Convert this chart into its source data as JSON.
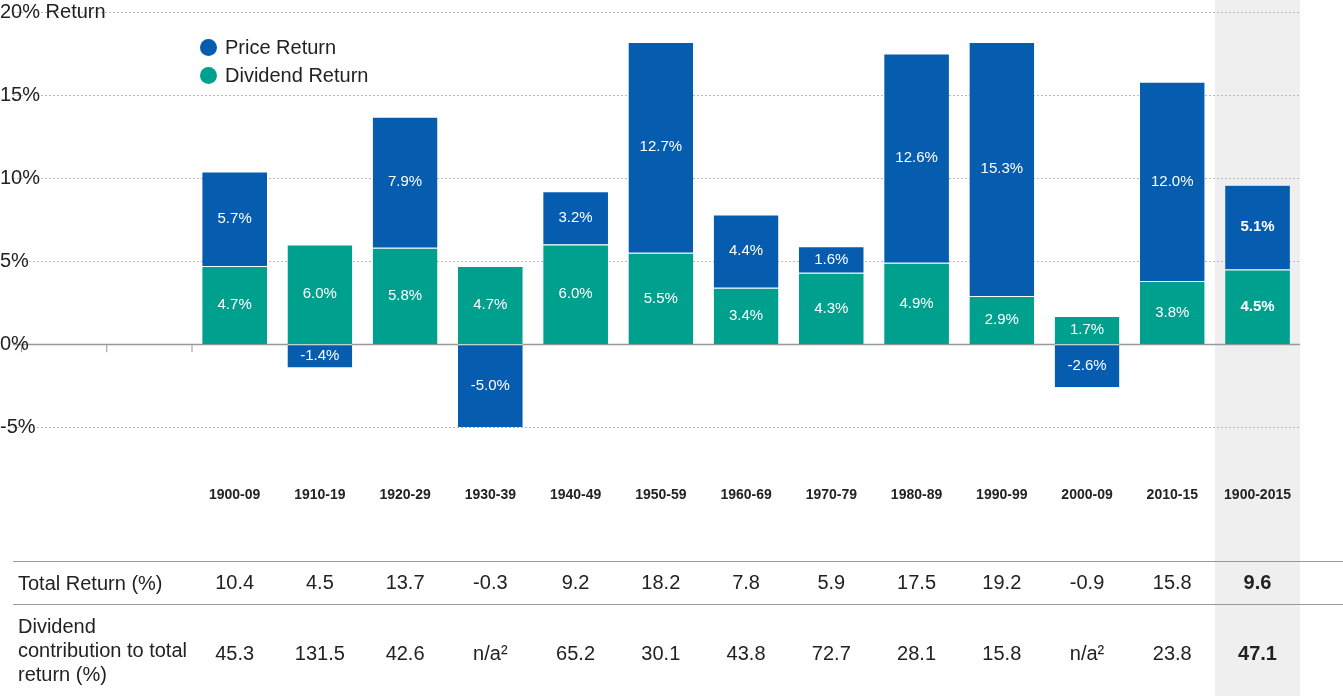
{
  "chart_data": {
    "type": "bar",
    "stacked": true,
    "categories": [
      "1900-09",
      "1910-19",
      "1920-29",
      "1930-39",
      "1940-49",
      "1950-59",
      "1960-69",
      "1970-79",
      "1980-89",
      "1990-99",
      "2000-09",
      "2010-15",
      "1900-2015"
    ],
    "series": [
      {
        "name": "Dividend Return",
        "color": "#00a08f",
        "values": [
          4.7,
          6.0,
          5.8,
          4.7,
          6.0,
          5.5,
          3.4,
          4.3,
          4.9,
          2.9,
          1.7,
          3.8,
          4.5
        ],
        "value_labels": [
          "4.7%",
          "6.0%",
          "5.8%",
          "4.7%",
          "6.0%",
          "5.5%",
          "3.4%",
          "4.3%",
          "4.9%",
          "2.9%",
          "1.7%",
          "3.8%",
          "4.5%"
        ]
      },
      {
        "name": "Price Return",
        "color": "#065caf",
        "values": [
          5.7,
          -1.4,
          7.9,
          -5.0,
          3.2,
          12.7,
          4.4,
          1.6,
          12.6,
          15.3,
          -2.6,
          12.0,
          5.1
        ],
        "value_labels": [
          "5.7%",
          "-1.4%",
          "7.9%",
          "-5.0%",
          "3.2%",
          "12.7%",
          "4.4%",
          "1.6%",
          "12.6%",
          "15.3%",
          "-2.6%",
          "12.0%",
          "5.1%"
        ]
      }
    ],
    "ylim": [
      -5,
      20
    ],
    "yticks": [
      {
        "value": -5,
        "label": "-5%"
      },
      {
        "value": 0,
        "label": "0%"
      },
      {
        "value": 5,
        "label": "5%"
      },
      {
        "value": 10,
        "label": "10%"
      },
      {
        "value": 15,
        "label": "15%"
      },
      {
        "value": 20,
        "label": "20% Return"
      }
    ],
    "grid": "y",
    "legend": "top left",
    "bands": [
      {
        "axis": "x",
        "from": "1900-2015",
        "to": "1900-2015",
        "color": "#efefef"
      }
    ],
    "annotations": [
      "Total Return (%)",
      "10.4",
      "4.5",
      "13.7",
      "-0.3",
      "9.2",
      "18.2",
      "7.8",
      "5.9",
      "17.5",
      "19.2",
      "-0.9",
      "15.8",
      "9.6",
      "Dividend contribution to total return (%)",
      "45.3",
      "131.5",
      "42.6",
      "n/a²",
      "65.2",
      "30.1",
      "43.8",
      "72.7",
      "28.1",
      "15.8",
      "n/a²",
      "23.8",
      "47.1"
    ]
  }
}
